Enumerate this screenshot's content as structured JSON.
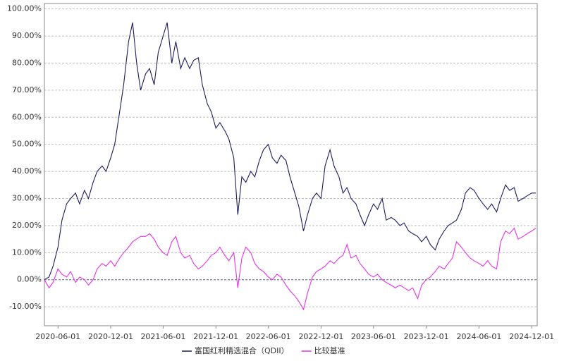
{
  "chart_data": {
    "type": "line",
    "x": [
      "2020-04-15",
      "2020-05-01",
      "2020-05-15",
      "2020-06-01",
      "2020-06-15",
      "2020-07-01",
      "2020-07-15",
      "2020-08-01",
      "2020-08-15",
      "2020-09-01",
      "2020-09-15",
      "2020-10-01",
      "2020-10-15",
      "2020-11-01",
      "2020-11-15",
      "2020-12-01",
      "2020-12-15",
      "2021-01-01",
      "2021-01-15",
      "2021-02-01",
      "2021-02-15",
      "2021-03-01",
      "2021-03-15",
      "2021-04-01",
      "2021-04-15",
      "2021-05-01",
      "2021-05-15",
      "2021-06-01",
      "2021-06-15",
      "2021-07-01",
      "2021-07-15",
      "2021-08-01",
      "2021-08-15",
      "2021-09-01",
      "2021-09-15",
      "2021-10-01",
      "2021-10-15",
      "2021-11-01",
      "2021-11-15",
      "2021-12-01",
      "2021-12-15",
      "2022-01-01",
      "2022-01-15",
      "2022-02-01",
      "2022-02-15",
      "2022-03-01",
      "2022-03-15",
      "2022-04-01",
      "2022-04-15",
      "2022-05-01",
      "2022-05-15",
      "2022-06-01",
      "2022-06-15",
      "2022-07-01",
      "2022-07-15",
      "2022-08-01",
      "2022-08-15",
      "2022-09-01",
      "2022-09-15",
      "2022-10-01",
      "2022-10-15",
      "2022-11-01",
      "2022-11-15",
      "2022-12-01",
      "2022-12-15",
      "2023-01-01",
      "2023-01-15",
      "2023-02-01",
      "2023-02-15",
      "2023-03-01",
      "2023-03-15",
      "2023-04-01",
      "2023-04-15",
      "2023-05-01",
      "2023-05-15",
      "2023-06-01",
      "2023-06-15",
      "2023-07-01",
      "2023-07-15",
      "2023-08-01",
      "2023-08-15",
      "2023-09-01",
      "2023-09-15",
      "2023-10-01",
      "2023-10-15",
      "2023-11-01",
      "2023-11-15",
      "2023-12-01",
      "2023-12-15",
      "2024-01-01",
      "2024-01-15",
      "2024-02-01",
      "2024-02-15",
      "2024-03-01",
      "2024-03-15",
      "2024-04-01",
      "2024-04-15",
      "2024-05-01",
      "2024-05-15",
      "2024-06-01",
      "2024-06-15",
      "2024-07-01",
      "2024-07-15",
      "2024-08-01",
      "2024-08-15",
      "2024-09-01",
      "2024-09-15",
      "2024-10-01",
      "2024-10-15",
      "2024-11-01",
      "2024-11-15",
      "2024-12-01",
      "2024-12-15"
    ],
    "series": [
      {
        "name": "富国红利精选混合（QDII）",
        "color": "#1c1c5e",
        "values": [
          0,
          1,
          5,
          12,
          22,
          28,
          30,
          32,
          28,
          33,
          30,
          36,
          40,
          42,
          40,
          45,
          50,
          62,
          72,
          88,
          95,
          80,
          70,
          76,
          78,
          72,
          84,
          90,
          95,
          80,
          88,
          78,
          82,
          78,
          81,
          82,
          72,
          65,
          62,
          56,
          58,
          55,
          52,
          45,
          24,
          38,
          36,
          40,
          38,
          44,
          48,
          50,
          45,
          43,
          46,
          44,
          38,
          32,
          27,
          18,
          24,
          30,
          32,
          30,
          42,
          48,
          42,
          38,
          32,
          34,
          30,
          28,
          24,
          20,
          24,
          28,
          26,
          30,
          22,
          23,
          22,
          20,
          21,
          18,
          17,
          16,
          14,
          16,
          13,
          11,
          15,
          18,
          20,
          21,
          22,
          26,
          32,
          34,
          33,
          30,
          28,
          26,
          28,
          25,
          30,
          35,
          33,
          34,
          29,
          30,
          31,
          32,
          32
        ]
      },
      {
        "name": "比较基准",
        "color": "#e633e6",
        "values": [
          0,
          -3,
          -1,
          4,
          2,
          1,
          3,
          -1,
          1,
          0,
          -2,
          0,
          4,
          6,
          5,
          7,
          5,
          8,
          10,
          12,
          14,
          15,
          16,
          16,
          17,
          15,
          12,
          10,
          9,
          14,
          16,
          10,
          8,
          9,
          6,
          4,
          5,
          7,
          9,
          10,
          12,
          9,
          7,
          10,
          -3,
          8,
          12,
          10,
          6,
          4,
          3,
          1,
          0,
          2,
          1,
          -2,
          -4,
          -6,
          -8,
          -11,
          -5,
          1,
          3,
          4,
          5,
          7,
          6,
          8,
          9,
          13,
          8,
          9,
          6,
          4,
          2,
          1,
          2,
          0,
          -1,
          -2,
          -3,
          -2,
          -3,
          -4,
          -3,
          -7,
          -2,
          0,
          1,
          3,
          5,
          4,
          6,
          8,
          14,
          12,
          10,
          8,
          7,
          6,
          5,
          7,
          5,
          4,
          14,
          18,
          17,
          19,
          15,
          16,
          17,
          18,
          19
        ]
      }
    ],
    "xlim": [
      "2020-04-15",
      "2024-12-20"
    ],
    "xticks": [
      "2020-06-01",
      "2020-12-01",
      "2021-06-01",
      "2021-12-01",
      "2022-06-01",
      "2022-12-01",
      "2023-06-01",
      "2023-12-01",
      "2024-06-01",
      "2024-12-01"
    ],
    "ylim": [
      -17,
      102
    ],
    "yticks": [
      {
        "value": -10,
        "label": "-10.00%"
      },
      {
        "value": 0,
        "label": "0.00%"
      },
      {
        "value": 10,
        "label": "10.00%"
      },
      {
        "value": 20,
        "label": "20.00%"
      },
      {
        "value": 30,
        "label": "30.00%"
      },
      {
        "value": 40,
        "label": "40.00%"
      },
      {
        "value": 50,
        "label": "50.00%"
      },
      {
        "value": 60,
        "label": "60.00%"
      },
      {
        "value": 70,
        "label": "70.00%"
      },
      {
        "value": 80,
        "label": "80.00%"
      },
      {
        "value": 90,
        "label": "90.00%"
      },
      {
        "value": 100,
        "label": "100.00%"
      }
    ],
    "grid": true,
    "legend": "bottom"
  }
}
